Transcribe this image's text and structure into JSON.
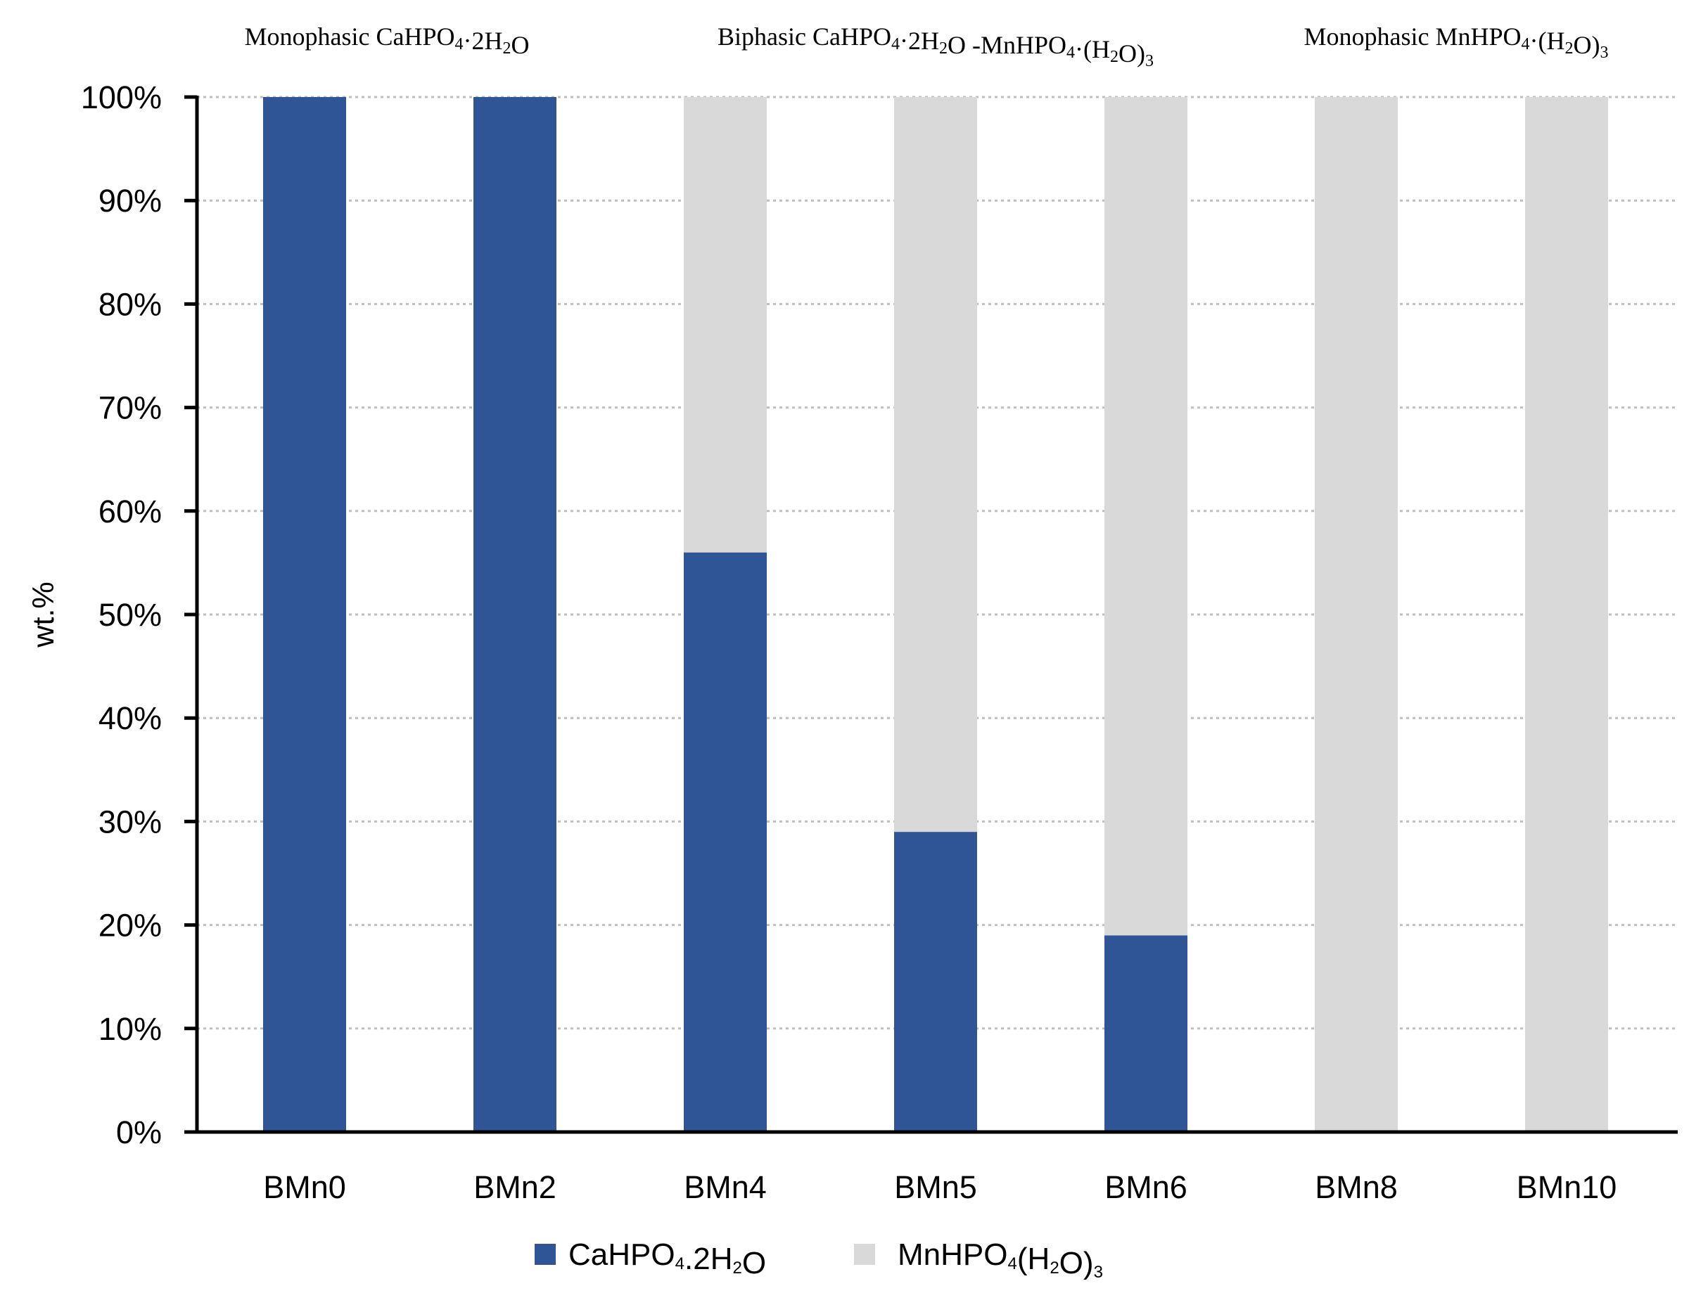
{
  "chart_data": {
    "type": "bar",
    "stacked": true,
    "categories": [
      "BMn0",
      "BMn2",
      "BMn4",
      "BMn5",
      "BMn6",
      "BMn8",
      "BMn10"
    ],
    "series": [
      {
        "name": "CaHPO4.2H2O",
        "color": "#2F5597",
        "values": [
          100,
          100,
          56,
          29,
          19,
          0,
          0
        ]
      },
      {
        "name": "MnHPO4(H2O)3",
        "color": "#D9D9D9",
        "values": [
          0,
          0,
          44,
          71,
          81,
          100,
          100
        ]
      }
    ],
    "ylabel": "wt.%",
    "xlabel": "",
    "ylim": [
      0,
      100
    ],
    "yticks": [
      "0%",
      "10%",
      "20%",
      "30%",
      "40%",
      "50%",
      "60%",
      "70%",
      "80%",
      "90%",
      "100%"
    ],
    "grid": "horizontal dotted",
    "legend": "bottom-center",
    "group_labels": [
      "Monophasic CaHPO4·2H2O",
      "Biphasic CaHPO4·2H2O -MnHPO4·(H2O)3",
      "Monophasic MnHPO4·(H2O)3"
    ]
  }
}
